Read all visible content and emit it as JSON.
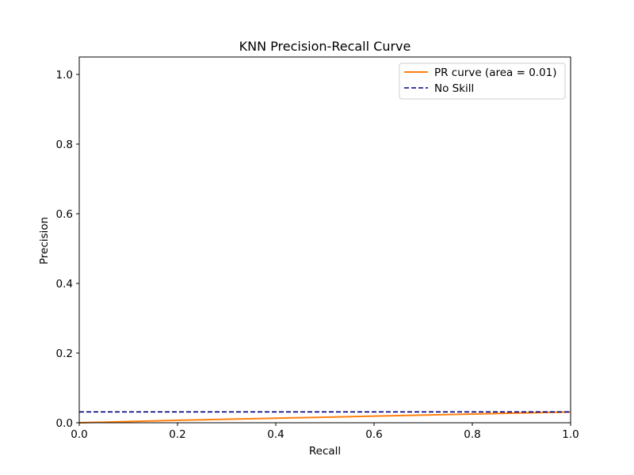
{
  "chart_data": {
    "type": "line",
    "title": "KNN Precision-Recall Curve",
    "xlabel": "Recall",
    "ylabel": "Precision",
    "xlim": [
      0.0,
      1.0
    ],
    "ylim": [
      0.0,
      1.05
    ],
    "xticks": [
      0.0,
      0.2,
      0.4,
      0.6,
      0.8,
      1.0
    ],
    "yticks": [
      0.0,
      0.2,
      0.4,
      0.6,
      0.8,
      1.0
    ],
    "xtick_labels": [
      "0.0",
      "0.2",
      "0.4",
      "0.6",
      "0.8",
      "1.0"
    ],
    "ytick_labels": [
      "0.0",
      "0.2",
      "0.4",
      "0.6",
      "0.8",
      "1.0"
    ],
    "grid": false,
    "legend_position": "top-right",
    "series": [
      {
        "name": "PR curve (area = 0.01)",
        "color": "#ff7f0e",
        "style": "solid",
        "x": [
          0.0,
          0.2,
          0.4,
          0.6,
          0.8,
          1.0
        ],
        "y": [
          0.0,
          0.007,
          0.013,
          0.019,
          0.025,
          0.031
        ]
      },
      {
        "name": "No Skill",
        "color": "#000080",
        "style": "dashed",
        "x": [
          0.0,
          1.0
        ],
        "y": [
          0.031,
          0.031
        ]
      }
    ]
  }
}
